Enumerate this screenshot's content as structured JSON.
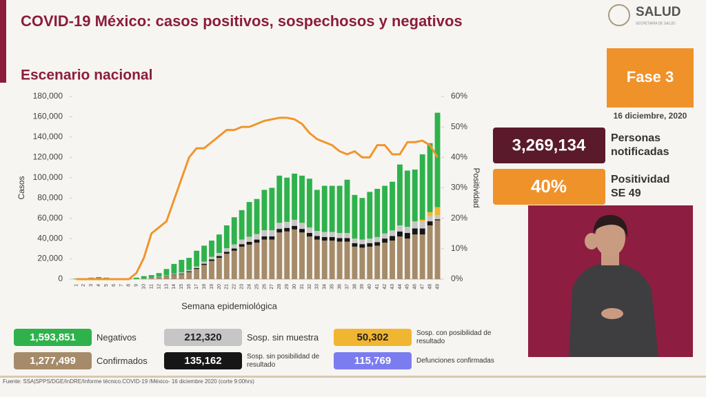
{
  "header": {
    "title": "COVID-19 México: casos positivos, sospechosos y negativos",
    "subtitle": "Escenario nacional",
    "logo": "SALUD",
    "logo_sub": "SECRETARÍA DE SALUD"
  },
  "phase": {
    "label": "Fase 3",
    "date": "16 diciembre, 2020"
  },
  "stats": [
    {
      "value": "3,269,134",
      "label": "Personas notificadas"
    },
    {
      "value": "40%",
      "label": "Positividad SE 49"
    }
  ],
  "chart_data": {
    "type": "bar",
    "stacked": true,
    "x_label": "Semana epidemiológica",
    "y_label": "Casos",
    "categories": [
      "1",
      "2",
      "3",
      "4",
      "5",
      "6",
      "7",
      "8",
      "9",
      "10",
      "11",
      "12",
      "13",
      "14",
      "15",
      "16",
      "17",
      "18",
      "19",
      "20",
      "21",
      "22",
      "23",
      "24",
      "25",
      "26",
      "27",
      "28",
      "29",
      "30",
      "31",
      "32",
      "33",
      "34",
      "35",
      "36",
      "37",
      "38",
      "39",
      "40",
      "41",
      "42",
      "43",
      "44",
      "45",
      "46",
      "47",
      "48",
      "49"
    ],
    "series": [
      {
        "name": "Confirmados",
        "total": "1,277,499",
        "color": "#a58b69",
        "values": [
          0,
          0,
          0,
          0,
          0,
          0,
          0,
          0,
          100,
          500,
          1000,
          2000,
          3000,
          4000,
          5000,
          7000,
          10000,
          14000,
          18000,
          21000,
          25000,
          28000,
          32000,
          34000,
          36000,
          39000,
          39000,
          46000,
          47000,
          49000,
          46000,
          42000,
          39000,
          38000,
          38000,
          37000,
          37000,
          32000,
          31000,
          32000,
          33000,
          36000,
          38000,
          42000,
          40000,
          44000,
          44000,
          53000,
          58000
        ]
      },
      {
        "name": "Sosp. sin posibilidad de resultado",
        "total": "135,162",
        "color": "#161616",
        "values": [
          0,
          0,
          0,
          0,
          0,
          0,
          0,
          0,
          0,
          0,
          100,
          200,
          300,
          500,
          600,
          800,
          1000,
          1200,
          1500,
          1800,
          2000,
          2200,
          2500,
          2800,
          3000,
          3200,
          3200,
          3500,
          3500,
          3500,
          3500,
          3500,
          3500,
          3500,
          3500,
          3500,
          3500,
          3500,
          3500,
          3500,
          3500,
          4000,
          4500,
          5000,
          5500,
          6000,
          6000,
          4000,
          1000
        ]
      },
      {
        "name": "Sosp. sin muestra",
        "total": "212,320",
        "color": "#c6c6c6",
        "values": [
          0,
          0,
          0,
          0,
          0,
          0,
          0,
          0,
          0,
          0,
          200,
          300,
          500,
          800,
          1000,
          1200,
          1500,
          2000,
          2500,
          3000,
          3500,
          4000,
          4500,
          5000,
          5500,
          6000,
          6000,
          6000,
          6000,
          6000,
          6000,
          5500,
          5000,
          5000,
          5000,
          5000,
          5000,
          4500,
          4500,
          4500,
          5000,
          5000,
          5500,
          6000,
          6000,
          6500,
          7000,
          5000,
          4000
        ]
      },
      {
        "name": "Sosp. con posibilidad de resultado",
        "total": "50,302",
        "color": "#f1b631",
        "values": [
          0,
          0,
          0,
          0,
          0,
          0,
          0,
          0,
          0,
          0,
          0,
          0,
          0,
          0,
          0,
          0,
          0,
          0,
          0,
          0,
          0,
          0,
          0,
          0,
          0,
          0,
          0,
          0,
          0,
          0,
          0,
          0,
          0,
          0,
          0,
          0,
          0,
          0,
          0,
          0,
          0,
          0,
          0,
          0,
          0,
          500,
          1500,
          4000,
          8000
        ]
      },
      {
        "name": "Negativos",
        "total": "1,593,851",
        "color": "#2fb24c",
        "values": [
          500,
          1000,
          1500,
          2000,
          1500,
          1000,
          1000,
          1000,
          1400,
          2500,
          2700,
          3500,
          6200,
          9700,
          12400,
          12000,
          15500,
          15800,
          16000,
          18200,
          22500,
          26800,
          29000,
          34200,
          34500,
          39800,
          41800,
          46500,
          43500,
          45500,
          46500,
          48000,
          40500,
          45500,
          45500,
          46500,
          52500,
          43000,
          41000,
          46000,
          47500,
          47000,
          48000,
          60000,
          55500,
          51000,
          64500,
          68000,
          93000
        ]
      },
      {
        "name": "Positividad",
        "type": "line",
        "axis": "y2",
        "color": "#f0952a",
        "values": [
          0,
          0,
          0,
          0,
          0,
          0,
          0,
          0,
          2,
          7,
          15,
          17,
          19,
          26,
          33,
          40,
          43,
          43,
          45,
          47,
          49,
          49,
          50,
          50,
          51,
          52,
          52.5,
          53,
          53,
          52.5,
          51,
          48,
          46,
          45,
          44,
          42,
          41,
          42,
          40,
          40,
          44,
          44,
          41,
          41,
          45,
          45,
          45.5,
          44,
          40
        ]
      }
    ],
    "ylim": [
      0,
      180000
    ],
    "yticks": [
      0,
      {
        "value": 20000,
        "label": "20,000"
      },
      {
        "value": 40000,
        "label": "40,000"
      },
      {
        "value": 60000,
        "label": "60,000"
      },
      {
        "value": 80000,
        "label": "80,000"
      },
      {
        "value": 100000,
        "label": "100,000"
      },
      {
        "value": 120000,
        "label": "120,000"
      },
      {
        "value": 140000,
        "label": "140,000"
      },
      {
        "value": 160000,
        "label": "160,000"
      },
      {
        "value": 180000,
        "label": "180,000"
      }
    ],
    "y2lim": [
      0,
      60
    ],
    "y2ticks": [
      {
        "value": 0,
        "label": "0%"
      },
      {
        "value": 10,
        "label": "10%"
      },
      {
        "value": 20,
        "label": "20%"
      },
      {
        "value": 30,
        "label": "30%"
      },
      {
        "value": 40,
        "label": "40%"
      },
      {
        "value": 50,
        "label": "50%"
      },
      {
        "value": 60,
        "label": "60%"
      }
    ],
    "grid": false
  },
  "deaths": {
    "total": "115,769",
    "label": "Defunciones confirmadas"
  },
  "footer": {
    "source": "Fuente: SSA|SPPS/DGE/InDRE/Informe técnico.COVID-19 /México- 16 diciembre 2020 (corte 9:00hrs)"
  }
}
